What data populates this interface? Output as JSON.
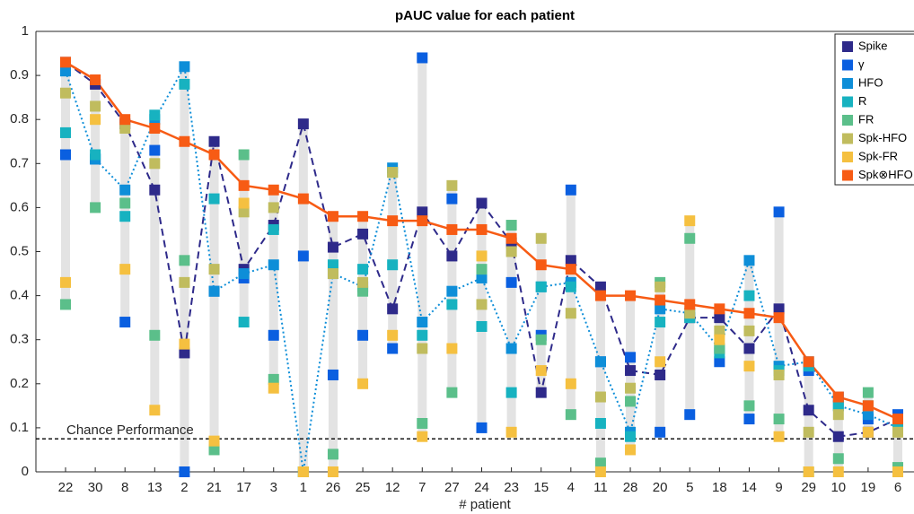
{
  "chart_data": {
    "type": "line",
    "title": "pAUC value for each patient",
    "x_label": "# patient",
    "categories": [
      "22",
      "30",
      "8",
      "13",
      "2",
      "21",
      "17",
      "3",
      "1",
      "26",
      "25",
      "12",
      "7",
      "27",
      "24",
      "23",
      "15",
      "4",
      "11",
      "28",
      "20",
      "5",
      "18",
      "14",
      "9",
      "29",
      "10",
      "19",
      "6"
    ],
    "ylim": [
      0,
      1
    ],
    "yticks": [
      0,
      0.1,
      0.2,
      0.3,
      0.4,
      0.5,
      0.6,
      0.7,
      0.8,
      0.9,
      1
    ],
    "reference_line": {
      "value": 0.075,
      "label": "Chance Performance"
    },
    "series": [
      {
        "name": "Spike",
        "color": "#2e2a8a",
        "line": "dashed",
        "values": [
          0.93,
          0.88,
          0.79,
          0.64,
          0.27,
          0.75,
          0.46,
          0.56,
          0.79,
          0.51,
          0.54,
          0.37,
          0.59,
          0.49,
          0.61,
          0.52,
          0.18,
          0.48,
          0.42,
          0.23,
          0.22,
          0.35,
          0.35,
          0.28,
          0.37,
          0.14,
          0.08,
          0.09,
          0.12
        ]
      },
      {
        "name": "γ",
        "color": "#0a5fe0",
        "line": "none",
        "values": [
          0.72,
          0.71,
          0.34,
          0.73,
          0.0,
          0.41,
          0.44,
          0.31,
          0.49,
          0.22,
          0.31,
          0.28,
          0.94,
          0.62,
          0.1,
          0.43,
          0.31,
          0.64,
          0.25,
          0.26,
          0.09,
          0.13,
          0.25,
          0.12,
          0.59,
          0.23,
          0.17,
          0.12,
          0.13
        ]
      },
      {
        "name": "HFO",
        "color": "#0e8ed8",
        "line": "dotted",
        "values": [
          0.91,
          0.71,
          0.64,
          0.8,
          0.92,
          0.41,
          0.45,
          0.47,
          0.0,
          0.45,
          0.42,
          0.69,
          0.34,
          0.41,
          0.44,
          0.28,
          0.42,
          0.43,
          0.25,
          0.09,
          0.37,
          0.36,
          0.28,
          0.48,
          0.24,
          0.25,
          0.15,
          0.13,
          0.1
        ]
      },
      {
        "name": "R",
        "color": "#17b2c0",
        "line": "none",
        "values": [
          0.77,
          0.72,
          0.58,
          0.81,
          0.88,
          0.62,
          0.34,
          0.55,
          0.0,
          0.47,
          0.46,
          0.47,
          0.31,
          0.38,
          0.33,
          0.18,
          0.42,
          0.42,
          0.11,
          0.08,
          0.34,
          0.35,
          0.27,
          0.4,
          0.23,
          0.24,
          0.15,
          0.15,
          0.11
        ]
      },
      {
        "name": "FR",
        "color": "#5bbf8a",
        "line": "none",
        "values": [
          0.38,
          0.6,
          0.61,
          0.31,
          0.48,
          0.05,
          0.72,
          0.21,
          0.0,
          0.04,
          0.41,
          0.68,
          0.11,
          0.18,
          0.46,
          0.56,
          0.3,
          0.13,
          0.02,
          0.16,
          0.43,
          0.53,
          0.28,
          0.15,
          0.12,
          0.0,
          0.03,
          0.18,
          0.01
        ]
      },
      {
        "name": "Spk-HFO",
        "color": "#c0bc5e",
        "line": "none",
        "values": [
          0.86,
          0.83,
          0.78,
          0.7,
          0.43,
          0.46,
          0.59,
          0.6,
          0.0,
          0.45,
          0.43,
          0.68,
          0.28,
          0.65,
          0.38,
          0.5,
          0.53,
          0.36,
          0.17,
          0.19,
          0.42,
          0.36,
          0.32,
          0.32,
          0.22,
          0.09,
          0.13,
          0.15,
          0.09
        ]
      },
      {
        "name": "Spk-FR",
        "color": "#f5c040",
        "line": "none",
        "values": [
          0.43,
          0.8,
          0.46,
          0.14,
          0.29,
          0.07,
          0.61,
          0.19,
          0.0,
          0.0,
          0.2,
          0.31,
          0.08,
          0.28,
          0.49,
          0.09,
          0.23,
          0.2,
          0.0,
          0.05,
          0.25,
          0.57,
          0.3,
          0.24,
          0.08,
          0.0,
          0.0,
          0.09,
          0.0
        ]
      },
      {
        "name": "Spk⊗HFO",
        "color": "#f75b14",
        "line": "solid",
        "values": [
          0.93,
          0.89,
          0.8,
          0.78,
          0.75,
          0.72,
          0.65,
          0.64,
          0.62,
          0.58,
          0.58,
          0.57,
          0.57,
          0.55,
          0.55,
          0.53,
          0.47,
          0.46,
          0.4,
          0.4,
          0.39,
          0.38,
          0.37,
          0.36,
          0.35,
          0.25,
          0.17,
          0.15,
          0.12
        ]
      }
    ]
  }
}
